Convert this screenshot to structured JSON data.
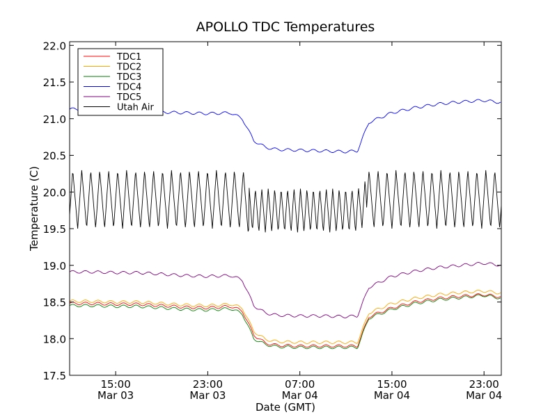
{
  "chart_data": {
    "type": "line",
    "title": "APOLLO TDC Temperatures",
    "xlabel": "Date (GMT)",
    "ylabel": "Temperature (C)",
    "xlim": [
      "Mar 03 11:00",
      "Mar 04 24:30"
    ],
    "ylim": [
      17.5,
      22.05
    ],
    "grid": false,
    "legend_position": "top-left",
    "x_ticks": [
      {
        "x": "Mar 03 15:00",
        "time": "15:00",
        "date": "Mar 03"
      },
      {
        "x": "Mar 03 23:00",
        "time": "23:00",
        "date": "Mar 03"
      },
      {
        "x": "Mar 04 07:00",
        "time": "07:00",
        "date": "Mar 04"
      },
      {
        "x": "Mar 04 15:00",
        "time": "15:00",
        "date": "Mar 04"
      },
      {
        "x": "Mar 04 23:00",
        "time": "23:00",
        "date": "Mar 04"
      }
    ],
    "y_ticks": [
      "17.5",
      "18.0",
      "18.5",
      "19.0",
      "19.5",
      "20.0",
      "20.5",
      "21.0",
      "21.5",
      "22.0"
    ],
    "x": [
      "Mar 03 11:00",
      "Mar 03 13:00",
      "Mar 03 15:00",
      "Mar 03 17:00",
      "Mar 03 19:00",
      "Mar 03 21:00",
      "Mar 03 23:00",
      "Mar 04 01:00",
      "Mar 04 02:00",
      "Mar 04 03:00",
      "Mar 04 04:00",
      "Mar 04 05:00",
      "Mar 04 07:00",
      "Mar 04 09:00",
      "Mar 04 11:00",
      "Mar 04 12:00",
      "Mar 04 13:00",
      "Mar 04 15:00",
      "Mar 04 17:00",
      "Mar 04 19:00",
      "Mar 04 21:00",
      "Mar 04 23:00",
      "Mar 04 24:30"
    ],
    "series": [
      {
        "name": "TDC1",
        "color": "#ff0000",
        "values": [
          18.48,
          18.48,
          18.47,
          18.47,
          18.45,
          18.43,
          18.42,
          18.44,
          18.38,
          18.05,
          17.94,
          17.91,
          17.9,
          17.9,
          17.9,
          17.9,
          18.3,
          18.42,
          18.5,
          18.55,
          18.58,
          18.6,
          18.57
        ]
      },
      {
        "name": "TDC2",
        "color": "#ffa500",
        "values": [
          18.51,
          18.51,
          18.5,
          18.5,
          18.48,
          18.46,
          18.45,
          18.47,
          18.42,
          18.1,
          17.99,
          17.96,
          17.95,
          17.95,
          17.95,
          17.95,
          18.35,
          18.48,
          18.55,
          18.6,
          18.63,
          18.65,
          18.62
        ]
      },
      {
        "name": "TDC3",
        "color": "#008000",
        "values": [
          18.45,
          18.45,
          18.44,
          18.44,
          18.42,
          18.4,
          18.39,
          18.41,
          18.34,
          18.0,
          17.92,
          17.89,
          17.88,
          17.88,
          17.88,
          17.88,
          18.28,
          18.4,
          18.48,
          18.53,
          18.56,
          18.59,
          18.55
        ]
      },
      {
        "name": "TDC4",
        "color": "#0000ff",
        "values": [
          21.13,
          21.13,
          21.12,
          21.11,
          21.09,
          21.08,
          21.07,
          21.08,
          21.0,
          20.7,
          20.61,
          20.58,
          20.57,
          20.56,
          20.55,
          20.56,
          20.95,
          21.08,
          21.15,
          21.2,
          21.23,
          21.25,
          21.22
        ]
      },
      {
        "name": "TDC5",
        "color": "#800080",
        "values": [
          18.91,
          18.91,
          18.9,
          18.9,
          18.88,
          18.86,
          18.85,
          18.86,
          18.8,
          18.45,
          18.35,
          18.32,
          18.31,
          18.31,
          18.3,
          18.31,
          18.7,
          18.85,
          18.92,
          18.97,
          19.0,
          19.03,
          19.0
        ]
      },
      {
        "name": "Utah Air",
        "color": "#000000",
        "values": [
          19.9,
          19.9,
          19.9,
          19.9,
          19.9,
          19.9,
          19.9,
          19.9,
          19.9,
          19.75,
          19.75,
          19.75,
          19.75,
          19.75,
          19.75,
          19.75,
          19.9,
          19.9,
          19.9,
          19.9,
          19.9,
          19.9,
          19.9
        ]
      }
    ]
  }
}
